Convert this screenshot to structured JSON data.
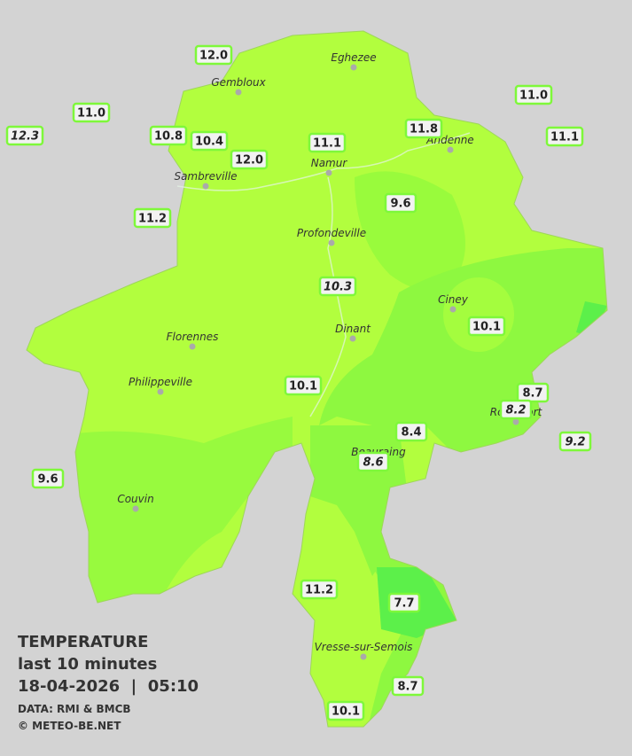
{
  "stations": [
    {
      "label": "12.0",
      "italic": false
    },
    {
      "label": "11.0",
      "italic": false
    },
    {
      "label": "12.3",
      "italic": true
    },
    {
      "label": "10.8",
      "italic": false
    },
    {
      "label": "10.4",
      "italic": false
    },
    {
      "label": "12.0",
      "italic": false
    },
    {
      "label": "11.1",
      "italic": false
    },
    {
      "label": "11.8",
      "italic": false
    },
    {
      "label": "11.0",
      "italic": false
    },
    {
      "label": "11.1",
      "italic": false
    },
    {
      "label": "11.2",
      "italic": false
    },
    {
      "label": "9.6",
      "italic": false
    },
    {
      "label": "10.3",
      "italic": true
    },
    {
      "label": "10.1",
      "italic": false
    },
    {
      "label": "10.1",
      "italic": false
    },
    {
      "label": "8.7",
      "italic": false
    },
    {
      "label": "8.2",
      "italic": true
    },
    {
      "label": "9.2",
      "italic": true
    },
    {
      "label": "8.4",
      "italic": false
    },
    {
      "label": "8.6",
      "italic": true
    },
    {
      "label": "9.6",
      "italic": false
    },
    {
      "label": "11.2",
      "italic": false
    },
    {
      "label": "7.7",
      "italic": false
    },
    {
      "label": "8.7",
      "italic": false
    },
    {
      "label": "10.1",
      "italic": false
    }
  ],
  "towns": [
    "Eghezee",
    "Gembloux",
    "Andenne",
    "Namur",
    "Sambreville",
    "Profondeville",
    "Ciney",
    "Dinant",
    "Florennes",
    "Philippeville",
    "Rochefort",
    "Beauraing",
    "Couvin",
    "Vresse-sur-Semois"
  ],
  "footer": {
    "title": "TEMPERATURE",
    "subtitle": "last 10 minutes",
    "datetime": "18-04-2026  |  05:10",
    "source": "DATA: RMI & BMCB",
    "copyright": "© METEO-BE.NET"
  }
}
